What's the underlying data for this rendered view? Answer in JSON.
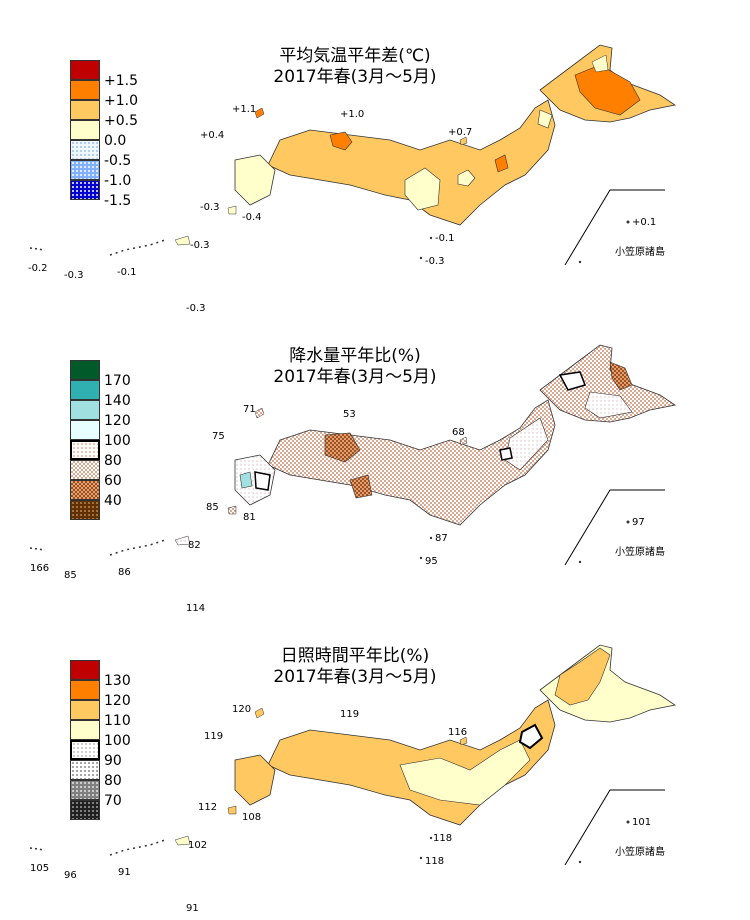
{
  "panels": [
    {
      "title1": "平均気温平年差(℃)",
      "title2": "2017年春(3月～5月)",
      "legend": [
        "+1.5",
        "+1.0",
        "+0.5",
        "0.0",
        "-0.5",
        "-1.0",
        "-1.5"
      ],
      "colors": [
        "#c00000",
        "#ff8000",
        "#ffc860",
        "#ffffcc",
        "#e0f0ff",
        "#80b0ff",
        "#0000d0"
      ],
      "values": {
        "v1": "+1.1",
        "v2": "+1.0",
        "v3": "+0.4",
        "v4": "+0.7",
        "v5": "-0.3",
        "v6": "-0.4",
        "v7": "-0.1",
        "v8": "-0.3",
        "v9": "-0.3",
        "v10": "-0.2",
        "v11": "-0.3",
        "v12": "-0.1",
        "v13": "-0.3",
        "v14": "+0.1"
      },
      "island": "小笠原諸島"
    },
    {
      "title1": "降水量平年比(%)",
      "title2": "2017年春(3月～5月)",
      "legend": [
        "170",
        "140",
        "120",
        "100",
        "80",
        "60",
        "40"
      ],
      "colors": [
        "#005a2a",
        "#30b0b0",
        "#a0e0e0",
        "#e8ffff",
        "#fff8ee",
        "#f0d0c0",
        "#c87848",
        "#603000"
      ],
      "values": {
        "v1": "71",
        "v2": "53",
        "v3": "75",
        "v4": "68",
        "v5": "85",
        "v6": "81",
        "v7": "87",
        "v8": "95",
        "v9": "82",
        "v10": "166",
        "v11": "85",
        "v12": "86",
        "v13": "114",
        "v14": "97"
      },
      "island": "小笠原諸島"
    },
    {
      "title1": "日照時間平年比(%)",
      "title2": "2017年春(3月～5月)",
      "legend": [
        "130",
        "120",
        "110",
        "100",
        "90",
        "80",
        "70"
      ],
      "colors": [
        "#c00000",
        "#ff8000",
        "#ffc860",
        "#ffffcc",
        "#ffffff",
        "#d0d0d0",
        "#909090",
        "#303030"
      ],
      "values": {
        "v1": "120",
        "v2": "119",
        "v3": "119",
        "v4": "116",
        "v5": "112",
        "v6": "108",
        "v7": "118",
        "v8": "118",
        "v9": "102",
        "v10": "105",
        "v11": "96",
        "v12": "91",
        "v13": "91",
        "v14": "101"
      },
      "island": "小笠原諸島"
    }
  ]
}
